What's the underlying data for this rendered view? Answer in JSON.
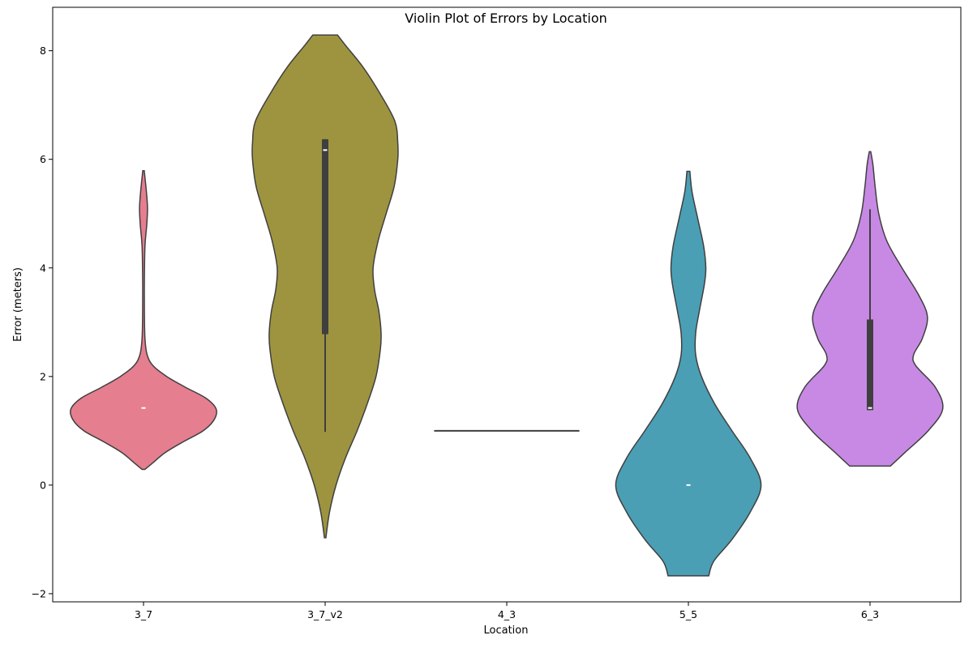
{
  "chart_data": {
    "type": "violin",
    "title": "Violin Plot of Errors by Location",
    "xlabel": "Location",
    "ylabel": "Error (meters)",
    "ylim": [
      -2.15,
      8.8
    ],
    "yticks": [
      -2,
      0,
      2,
      4,
      6,
      8
    ],
    "grid": false,
    "categories": [
      "3_7",
      "3_7_v2",
      "4_3",
      "5_5",
      "6_3"
    ],
    "series": [
      {
        "category": "3_7",
        "color": "#e57e8f",
        "median": 1.42,
        "q1": 1.42,
        "q3": 1.42,
        "whisker_low": 1.42,
        "whisker_high": 1.42,
        "profile": [
          [
            0.29,
            0.02
          ],
          [
            0.4,
            0.12
          ],
          [
            0.6,
            0.3
          ],
          [
            0.8,
            0.55
          ],
          [
            1.0,
            0.82
          ],
          [
            1.2,
            0.97
          ],
          [
            1.4,
            1.0
          ],
          [
            1.6,
            0.86
          ],
          [
            1.8,
            0.58
          ],
          [
            2.0,
            0.32
          ],
          [
            2.2,
            0.13
          ],
          [
            2.4,
            0.05
          ],
          [
            2.7,
            0.02
          ],
          [
            3.2,
            0.012
          ],
          [
            3.8,
            0.012
          ],
          [
            4.4,
            0.02
          ],
          [
            4.8,
            0.045
          ],
          [
            5.1,
            0.055
          ],
          [
            5.4,
            0.04
          ],
          [
            5.79,
            0.01
          ]
        ]
      },
      {
        "category": "3_7_v2",
        "color": "#9e9440",
        "median": 6.17,
        "q1": 2.78,
        "q3": 6.37,
        "whisker_low": 0.98,
        "whisker_high": 6.37,
        "profile": [
          [
            -0.97,
            0.01
          ],
          [
            -0.5,
            0.06
          ],
          [
            0.0,
            0.15
          ],
          [
            0.5,
            0.28
          ],
          [
            1.0,
            0.44
          ],
          [
            1.5,
            0.58
          ],
          [
            2.0,
            0.7
          ],
          [
            2.5,
            0.76
          ],
          [
            2.8,
            0.77
          ],
          [
            3.2,
            0.74
          ],
          [
            3.6,
            0.68
          ],
          [
            4.0,
            0.66
          ],
          [
            4.5,
            0.73
          ],
          [
            5.0,
            0.84
          ],
          [
            5.5,
            0.95
          ],
          [
            6.0,
            1.0
          ],
          [
            6.3,
            1.0
          ],
          [
            6.7,
            0.96
          ],
          [
            7.2,
            0.76
          ],
          [
            7.7,
            0.52
          ],
          [
            8.1,
            0.28
          ],
          [
            8.29,
            0.17
          ]
        ]
      },
      {
        "category": "4_3",
        "flat_value": 1.0,
        "color": "#3f3f3f"
      },
      {
        "category": "5_5",
        "color": "#4a9fb5",
        "median": 0.0,
        "q1": 0.0,
        "q3": 0.0,
        "whisker_low": 0.0,
        "whisker_high": 0.0,
        "profile": [
          [
            -1.67,
            0.28
          ],
          [
            -1.4,
            0.35
          ],
          [
            -1.0,
            0.6
          ],
          [
            -0.5,
            0.85
          ],
          [
            0.0,
            1.0
          ],
          [
            0.5,
            0.85
          ],
          [
            1.0,
            0.6
          ],
          [
            1.5,
            0.36
          ],
          [
            2.0,
            0.18
          ],
          [
            2.4,
            0.1
          ],
          [
            2.8,
            0.1
          ],
          [
            3.2,
            0.15
          ],
          [
            3.7,
            0.22
          ],
          [
            4.0,
            0.24
          ],
          [
            4.4,
            0.21
          ],
          [
            4.9,
            0.13
          ],
          [
            5.4,
            0.05
          ],
          [
            5.78,
            0.02
          ]
        ]
      },
      {
        "category": "6_3",
        "color": "#c889e5",
        "median": 1.42,
        "q1": 1.38,
        "q3": 3.05,
        "whisker_low": 1.38,
        "whisker_high": 5.08,
        "profile": [
          [
            0.35,
            0.28
          ],
          [
            0.6,
            0.48
          ],
          [
            1.0,
            0.8
          ],
          [
            1.4,
            1.0
          ],
          [
            1.8,
            0.9
          ],
          [
            2.2,
            0.63
          ],
          [
            2.4,
            0.6
          ],
          [
            2.7,
            0.72
          ],
          [
            3.1,
            0.79
          ],
          [
            3.5,
            0.67
          ],
          [
            4.0,
            0.44
          ],
          [
            4.5,
            0.23
          ],
          [
            5.0,
            0.12
          ],
          [
            5.5,
            0.07
          ],
          [
            5.9,
            0.04
          ],
          [
            6.14,
            0.01
          ]
        ]
      }
    ]
  }
}
